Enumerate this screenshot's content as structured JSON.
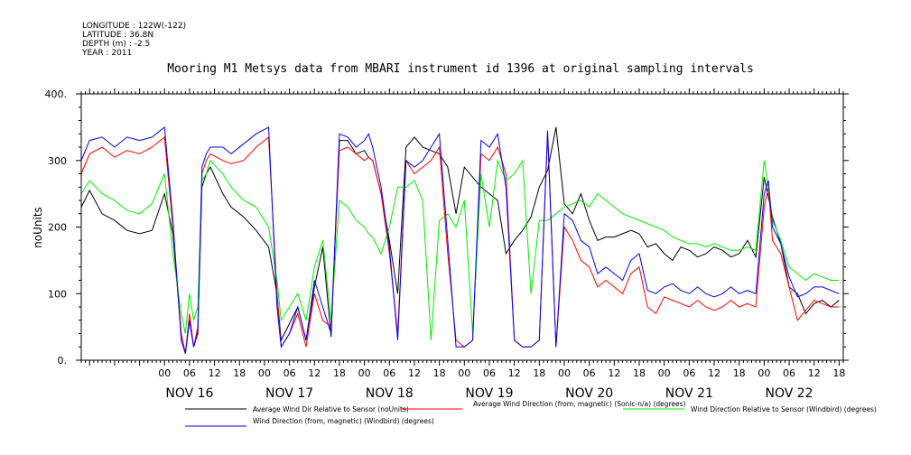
{
  "header": {
    "meta_lines": [
      "LONGITUDE : 122W(-122)",
      "LATITUDE : 36.8N",
      "DEPTH (m) : -2.5",
      "YEAR : 2011"
    ]
  },
  "chart_data": {
    "type": "line",
    "title": "Mooring M1 Metsys data from MBARI instrument id 1396 at original sampling intervals",
    "ylabel": "noUnits",
    "xlabel": "",
    "ylim": [
      0,
      400
    ],
    "y_ticks": [
      0,
      100,
      200,
      300,
      400
    ],
    "y_tick_labels": [
      "0.",
      "100",
      "200",
      "300",
      "400."
    ],
    "x_unit": "hours since Nov 16 00:00 (2011)",
    "xlim": [
      -20,
      163
    ],
    "x_hour_ticks": [
      0,
      6,
      12,
      18,
      24,
      30,
      36,
      42,
      48,
      54,
      60,
      66,
      72,
      78,
      84,
      90,
      96,
      102,
      108,
      114,
      120,
      126,
      132,
      138,
      144,
      150,
      156,
      162
    ],
    "x_hour_tick_labels": [
      "00",
      "06",
      "12",
      "18",
      "00",
      "06",
      "12",
      "18",
      "00",
      "06",
      "12",
      "18",
      "00",
      "06",
      "12",
      "18",
      "00",
      "06",
      "12",
      "18",
      "00",
      "06",
      "12",
      "18",
      "00",
      "06",
      "12",
      "18"
    ],
    "x_day_labels": [
      {
        "x": 0,
        "label": "NOV 16"
      },
      {
        "x": 24,
        "label": "NOV 17"
      },
      {
        "x": 48,
        "label": "NOV 18"
      },
      {
        "x": 72,
        "label": "NOV 19"
      },
      {
        "x": 96,
        "label": "NOV 20"
      },
      {
        "x": 120,
        "label": "NOV 21"
      },
      {
        "x": 144,
        "label": "NOV 22"
      }
    ],
    "series": [
      {
        "name": "Average Wind Dir Relative to Sensor (noUnits)",
        "color": "#000000",
        "x": [
          -20,
          -18,
          -15,
          -12,
          -9,
          -6,
          -3,
          0,
          2,
          4,
          5,
          6,
          7,
          8,
          9,
          10,
          11,
          14,
          16,
          19,
          22,
          25,
          27,
          28,
          30,
          32,
          34,
          36,
          38,
          40,
          42,
          44,
          46,
          48,
          49,
          50,
          52,
          54,
          56,
          58,
          60,
          62,
          64,
          66,
          68,
          70,
          72,
          74,
          76,
          78,
          80,
          82,
          84,
          86,
          88,
          90,
          92,
          94,
          96,
          98,
          100,
          102,
          104,
          106,
          108,
          110,
          112,
          114,
          116,
          118,
          120,
          122,
          124,
          126,
          128,
          130,
          132,
          134,
          136,
          138,
          140,
          142,
          144,
          145,
          146,
          148,
          150,
          152,
          154,
          156,
          158,
          160,
          162
        ],
        "y": [
          230,
          255,
          220,
          210,
          195,
          190,
          195,
          250,
          190,
          40,
          10,
          60,
          20,
          45,
          260,
          280,
          290,
          250,
          230,
          215,
          195,
          170,
          100,
          30,
          55,
          80,
          30,
          110,
          170,
          35,
          330,
          330,
          310,
          315,
          305,
          300,
          250,
          180,
          100,
          320,
          335,
          320,
          315,
          310,
          290,
          220,
          290,
          275,
          260,
          250,
          240,
          160,
          180,
          195,
          215,
          260,
          285,
          350,
          235,
          220,
          250,
          210,
          180,
          185,
          185,
          190,
          195,
          190,
          170,
          175,
          160,
          150,
          170,
          165,
          155,
          160,
          170,
          165,
          155,
          160,
          180,
          155,
          275,
          245,
          215,
          175,
          110,
          100,
          70,
          85,
          90,
          80,
          90
        ]
      },
      {
        "name": "Average Wind Direction (from, magnetic) (Sonic-n/a) (degrees)",
        "color": "#ff0000",
        "x": [
          -20,
          -18,
          -15,
          -12,
          -9,
          -6,
          -3,
          0,
          2,
          4,
          5,
          6,
          7,
          8,
          9,
          10,
          11,
          14,
          16,
          19,
          22,
          25,
          27,
          28,
          30,
          32,
          34,
          36,
          38,
          40,
          42,
          44,
          46,
          48,
          49,
          50,
          52,
          54,
          56,
          58,
          60,
          62,
          64,
          66,
          68,
          70,
          72,
          74,
          76,
          78,
          80,
          82,
          84,
          86,
          88,
          90,
          92,
          94,
          96,
          98,
          100,
          102,
          104,
          106,
          108,
          110,
          112,
          114,
          116,
          118,
          120,
          122,
          124,
          126,
          128,
          130,
          132,
          134,
          136,
          138,
          140,
          142,
          144,
          145,
          146,
          148,
          150,
          152,
          154,
          156,
          158,
          160,
          162
        ],
        "y": [
          280,
          310,
          320,
          305,
          315,
          310,
          320,
          335,
          200,
          40,
          10,
          70,
          20,
          50,
          280,
          300,
          310,
          300,
          295,
          300,
          320,
          335,
          100,
          20,
          40,
          70,
          20,
          100,
          60,
          50,
          315,
          320,
          310,
          300,
          305,
          300,
          250,
          160,
          40,
          300,
          280,
          290,
          300,
          320,
          160,
          30,
          20,
          30,
          310,
          300,
          320,
          280,
          30,
          20,
          20,
          30,
          340,
          20,
          200,
          180,
          150,
          140,
          110,
          120,
          110,
          100,
          130,
          140,
          80,
          70,
          95,
          90,
          85,
          80,
          90,
          80,
          75,
          80,
          90,
          80,
          85,
          80,
          230,
          260,
          180,
          160,
          110,
          60,
          75,
          90,
          85,
          80,
          80
        ]
      },
      {
        "name": "Wind Direction Relative to Sensor (Windbird) (degrees)",
        "color": "#00ee00",
        "x": [
          -20,
          -18,
          -15,
          -12,
          -9,
          -6,
          -3,
          0,
          2,
          4,
          5,
          6,
          7,
          8,
          9,
          10,
          11,
          14,
          16,
          19,
          22,
          25,
          27,
          28,
          30,
          32,
          34,
          36,
          38,
          40,
          42,
          44,
          46,
          48,
          49,
          50,
          52,
          54,
          56,
          58,
          60,
          62,
          64,
          66,
          68,
          70,
          72,
          74,
          76,
          78,
          80,
          82,
          84,
          86,
          88,
          90,
          92,
          94,
          96,
          98,
          100,
          102,
          104,
          106,
          108,
          110,
          112,
          114,
          116,
          118,
          120,
          122,
          124,
          126,
          128,
          130,
          132,
          134,
          136,
          138,
          140,
          142,
          144,
          145,
          146,
          148,
          150,
          152,
          154,
          156,
          158,
          160,
          162
        ],
        "y": [
          250,
          270,
          250,
          240,
          225,
          220,
          235,
          280,
          160,
          70,
          40,
          100,
          60,
          80,
          270,
          280,
          300,
          280,
          260,
          240,
          230,
          200,
          120,
          60,
          80,
          100,
          60,
          140,
          180,
          60,
          240,
          230,
          210,
          200,
          190,
          185,
          160,
          200,
          260,
          260,
          270,
          240,
          30,
          210,
          220,
          200,
          240,
          40,
          280,
          200,
          300,
          270,
          280,
          300,
          100,
          210,
          210,
          220,
          230,
          235,
          240,
          230,
          250,
          240,
          230,
          220,
          215,
          210,
          205,
          200,
          195,
          185,
          180,
          175,
          175,
          170,
          175,
          170,
          165,
          165,
          170,
          165,
          300,
          260,
          210,
          180,
          140,
          130,
          120,
          130,
          125,
          120,
          120
        ]
      },
      {
        "name": "Wind Direction (from, magnetic) (Windbird) (degrees)",
        "color": "#0000ff",
        "x": [
          -20,
          -18,
          -15,
          -12,
          -9,
          -6,
          -3,
          0,
          2,
          4,
          5,
          6,
          7,
          8,
          9,
          10,
          11,
          14,
          16,
          19,
          22,
          25,
          27,
          28,
          30,
          32,
          34,
          36,
          38,
          40,
          42,
          44,
          46,
          48,
          49,
          50,
          52,
          54,
          56,
          58,
          60,
          62,
          64,
          66,
          68,
          70,
          72,
          74,
          76,
          78,
          80,
          82,
          84,
          86,
          88,
          90,
          92,
          94,
          96,
          98,
          100,
          102,
          104,
          106,
          108,
          110,
          112,
          114,
          116,
          118,
          120,
          122,
          124,
          126,
          128,
          130,
          132,
          134,
          136,
          138,
          140,
          142,
          144,
          145,
          146,
          148,
          150,
          152,
          154,
          156,
          158,
          160,
          162
        ],
        "y": [
          300,
          330,
          335,
          320,
          335,
          330,
          335,
          350,
          210,
          30,
          10,
          60,
          20,
          40,
          290,
          310,
          320,
          320,
          310,
          325,
          340,
          350,
          80,
          20,
          40,
          80,
          30,
          120,
          80,
          40,
          340,
          335,
          320,
          330,
          340,
          320,
          260,
          170,
          30,
          300,
          290,
          300,
          320,
          340,
          180,
          20,
          20,
          30,
          330,
          320,
          340,
          260,
          30,
          20,
          20,
          30,
          345,
          20,
          220,
          210,
          180,
          170,
          130,
          140,
          130,
          120,
          150,
          160,
          105,
          100,
          110,
          115,
          105,
          100,
          110,
          100,
          95,
          100,
          110,
          100,
          105,
          100,
          250,
          270,
          200,
          175,
          125,
          95,
          100,
          110,
          110,
          105,
          100
        ]
      }
    ],
    "legend": [
      {
        "text": "Average Wind Dir Relative to Sensor (noUnits)",
        "color": "#000000"
      },
      {
        "text": "Average Wind Direction (from, magnetic) (Sonic-n/a) (degrees)",
        "color": "#ff0000"
      },
      {
        "text": "Wind Direction Relative to Sensor (Windbird) (degrees)",
        "color": "#00ee00"
      },
      {
        "text": "Wind Direction (from, magnetic) (Windbird) (degrees)",
        "color": "#0000ff"
      }
    ],
    "legend_placement": "bottom",
    "grid": false
  }
}
